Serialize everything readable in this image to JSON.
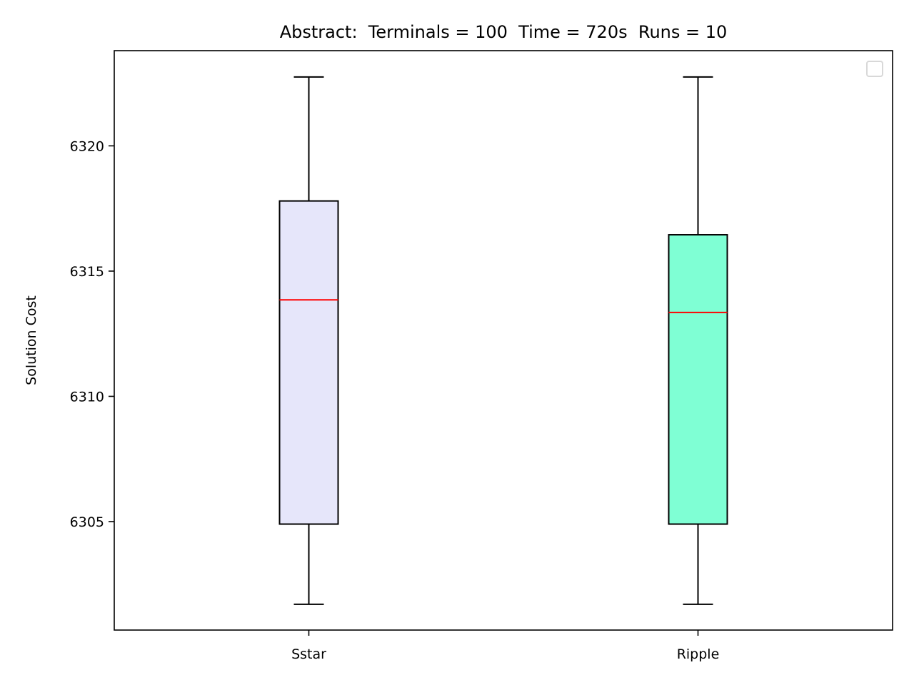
{
  "chart_data": {
    "type": "box",
    "title": "Abstract:  Terminals = 100  Time = 720s  Runs = 10",
    "xlabel": "",
    "ylabel": "Solution Cost",
    "categories": [
      "Sstar",
      "Ripple"
    ],
    "ylim": [
      6300.67,
      6323.8
    ],
    "yticks": [
      6305,
      6310,
      6315,
      6320
    ],
    "grid": false,
    "legend": "top-right (empty)",
    "boxes": [
      {
        "category": "Sstar",
        "whisker_low": 6301.7,
        "q1": 6304.9,
        "median": 6313.85,
        "q3": 6317.8,
        "whisker_high": 6322.75,
        "fill": "#e6e6fa"
      },
      {
        "category": "Ripple",
        "whisker_low": 6301.7,
        "q1": 6304.9,
        "median": 6313.35,
        "q3": 6316.45,
        "whisker_high": 6322.75,
        "fill": "#7fffd4"
      }
    ],
    "median_color": "#ff0000",
    "box_edge_color": "#000000"
  }
}
